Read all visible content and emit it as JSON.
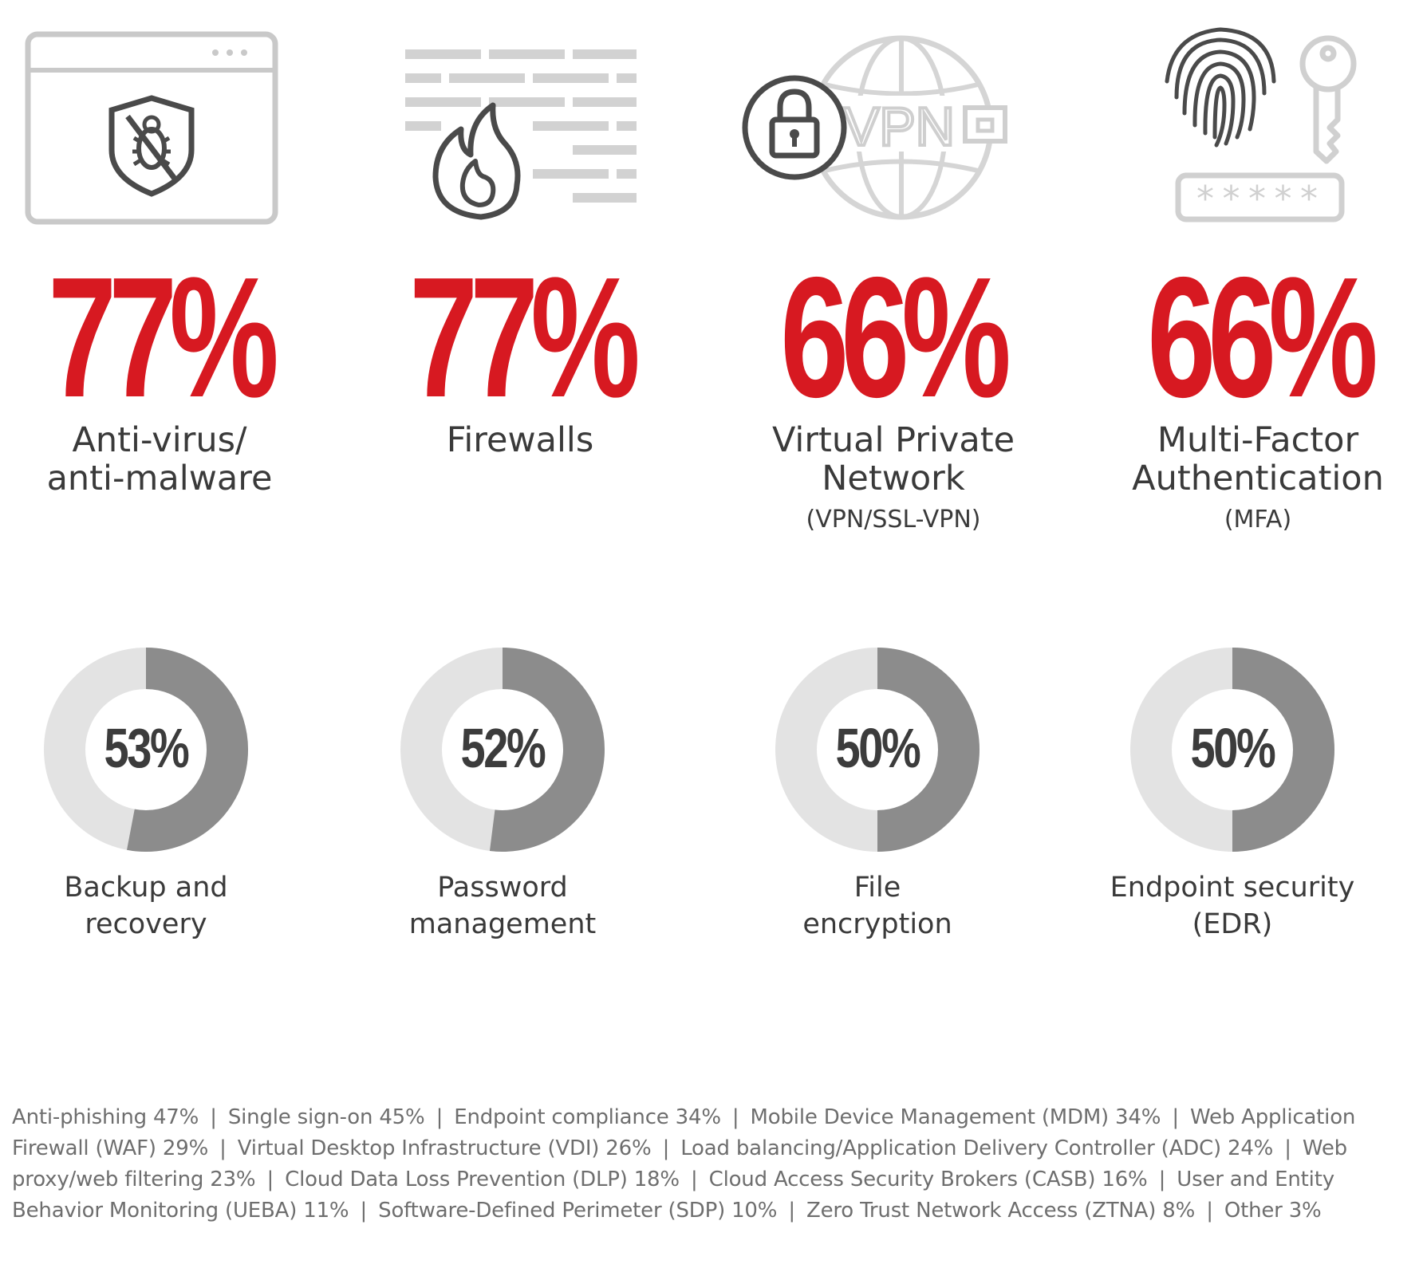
{
  "colors": {
    "accent": "#d71921",
    "donut_fill": "#8c8c8c",
    "donut_track": "#e3e3e3",
    "icon_light": "#c9c9c9",
    "icon_dark": "#4a4a4a"
  },
  "chart_data": [
    {
      "type": "table",
      "categories": [
        "Anti-virus/ anti-malware",
        "Firewalls",
        "Virtual Private Network (VPN/SSL-VPN)",
        "Multi-Factor Authentication (MFA)"
      ],
      "values": [
        77,
        77,
        66,
        66
      ]
    },
    {
      "type": "pie",
      "categories": [
        "Backup and recovery",
        "Password management",
        "File encryption",
        "Endpoint security (EDR)"
      ],
      "values": [
        53,
        52,
        50,
        50
      ]
    },
    {
      "type": "table",
      "categories": [
        "Anti-phishing",
        "Single sign-on",
        "Endpoint compliance",
        "Mobile Device Management (MDM)",
        "Web Application Firewall (WAF)",
        "Virtual Desktop Infrastructure (VDI)",
        "Load balancing/Application Delivery Controller (ADC)",
        "Web proxy/web filtering",
        "Cloud Data Loss Prevention (DLP)",
        "Cloud Access Security Brokers (CASB)",
        "User and Entity Behavior Monitoring (UEBA)",
        "Software-Defined Perimeter (SDP)",
        "Zero Trust Network Access (ZTNA)",
        "Other"
      ],
      "values": [
        47,
        45,
        34,
        34,
        29,
        26,
        24,
        23,
        18,
        16,
        11,
        10,
        8,
        3
      ]
    }
  ],
  "top_stats": [
    {
      "pct": "77%",
      "label_lines": [
        "Anti-virus/",
        "anti-malware"
      ],
      "sub": "",
      "icon": "browser-shield-bug-icon"
    },
    {
      "pct": "77%",
      "label_lines": [
        "Firewalls"
      ],
      "sub": "",
      "icon": "firewall-flame-icon"
    },
    {
      "pct": "66%",
      "label_lines": [
        "Virtual Private",
        "Network"
      ],
      "sub": "(VPN/SSL-VPN)",
      "icon": "vpn-globe-lock-icon"
    },
    {
      "pct": "66%",
      "label_lines": [
        "Multi-Factor",
        "Authentication"
      ],
      "sub": "(MFA)",
      "icon": "fingerprint-key-password-icon"
    }
  ],
  "icon_text": {
    "vpn": "VPN",
    "password_mask": "*****"
  },
  "donuts": [
    {
      "pct": "53%",
      "value": 0.53,
      "label_lines": [
        "Backup and",
        "recovery"
      ]
    },
    {
      "pct": "52%",
      "value": 0.52,
      "label_lines": [
        "Password",
        "management"
      ]
    },
    {
      "pct": "50%",
      "value": 0.5,
      "label_lines": [
        "File",
        "encryption"
      ]
    },
    {
      "pct": "50%",
      "value": 0.5,
      "label_lines": [
        "Endpoint security",
        "(EDR)"
      ]
    }
  ],
  "footnote_items": [
    "Anti-phishing 47%",
    "Single sign-on 45%",
    "Endpoint compliance 34%",
    "Mobile Device Management (MDM) 34%",
    "Web Application Firewall (WAF) 29%",
    "Virtual Desktop Infrastructure (VDI) 26%",
    "Load balancing/Application Delivery Controller (ADC) 24%",
    "Web proxy/web filtering 23%",
    "Cloud Data Loss Prevention (DLP) 18%",
    "Cloud Access Security Brokers (CASB) 16%",
    "User and Entity Behavior Monitoring (UEBA) 11%",
    "Software-Defined Perimeter (SDP) 10%",
    "Zero Trust Network Access (ZTNA) 8%",
    "Other 3%"
  ],
  "footnote_separator": "|"
}
